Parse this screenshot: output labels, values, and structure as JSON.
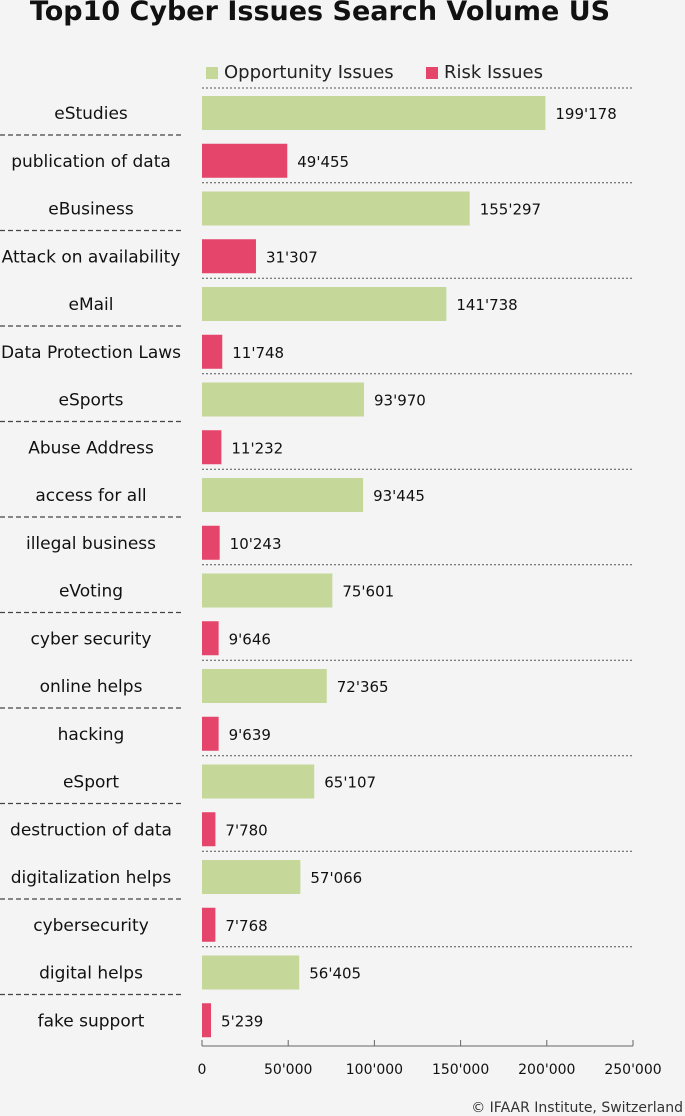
{
  "title": "Top10 Cyber Issues Search Volume US",
  "legend": {
    "opportunity": {
      "label": "Opportunity Issues",
      "color": "#c5d89a"
    },
    "risk": {
      "label": "Risk Issues",
      "color": "#e5456a"
    }
  },
  "copyright": "© IFAAR Institute, Switzerland",
  "chart_data": {
    "type": "bar",
    "orientation": "horizontal",
    "title": "Top10 Cyber Issues Search Volume US",
    "xlim": [
      0,
      250000
    ],
    "x_ticks": [
      "0",
      "50'000",
      "100'000",
      "150'000",
      "200'000",
      "250'000"
    ],
    "legend_position": "top",
    "grid": false,
    "series": [
      {
        "name": "Opportunity Issues",
        "color": "#c5d89a"
      },
      {
        "name": "Risk Issues",
        "color": "#e5456a"
      }
    ],
    "bars": [
      {
        "category": "eStudies",
        "series": "Opportunity Issues",
        "value": 199178,
        "label": "199'178"
      },
      {
        "category": "publication of data",
        "series": "Risk Issues",
        "value": 49455,
        "label": "49'455"
      },
      {
        "category": "eBusiness",
        "series": "Opportunity Issues",
        "value": 155297,
        "label": "155'297"
      },
      {
        "category": "Attack on availability",
        "series": "Risk Issues",
        "value": 31307,
        "label": "31'307"
      },
      {
        "category": "eMail",
        "series": "Opportunity Issues",
        "value": 141738,
        "label": "141'738"
      },
      {
        "category": "Data Protection Laws",
        "series": "Risk Issues",
        "value": 11748,
        "label": "11'748"
      },
      {
        "category": "eSports",
        "series": "Opportunity Issues",
        "value": 93970,
        "label": "93'970"
      },
      {
        "category": "Abuse Address",
        "series": "Risk Issues",
        "value": 11232,
        "label": "11'232"
      },
      {
        "category": "access for all",
        "series": "Opportunity Issues",
        "value": 93445,
        "label": "93'445"
      },
      {
        "category": "illegal business",
        "series": "Risk Issues",
        "value": 10243,
        "label": "10'243"
      },
      {
        "category": "eVoting",
        "series": "Opportunity Issues",
        "value": 75601,
        "label": "75'601"
      },
      {
        "category": "cyber security",
        "series": "Risk Issues",
        "value": 9646,
        "label": "9'646"
      },
      {
        "category": "online helps",
        "series": "Opportunity Issues",
        "value": 72365,
        "label": "72'365"
      },
      {
        "category": "hacking",
        "series": "Risk Issues",
        "value": 9639,
        "label": "9'639"
      },
      {
        "category": "eSport",
        "series": "Opportunity Issues",
        "value": 65107,
        "label": "65'107"
      },
      {
        "category": "destruction of data",
        "series": "Risk Issues",
        "value": 7780,
        "label": "7'780"
      },
      {
        "category": "digitalization helps",
        "series": "Opportunity Issues",
        "value": 57066,
        "label": "57'066"
      },
      {
        "category": "cybersecurity",
        "series": "Risk Issues",
        "value": 7768,
        "label": "7'768"
      },
      {
        "category": "digital helps",
        "series": "Opportunity Issues",
        "value": 56405,
        "label": "56'405"
      },
      {
        "category": "fake support",
        "series": "Risk Issues",
        "value": 5239,
        "label": "5'239"
      }
    ]
  }
}
